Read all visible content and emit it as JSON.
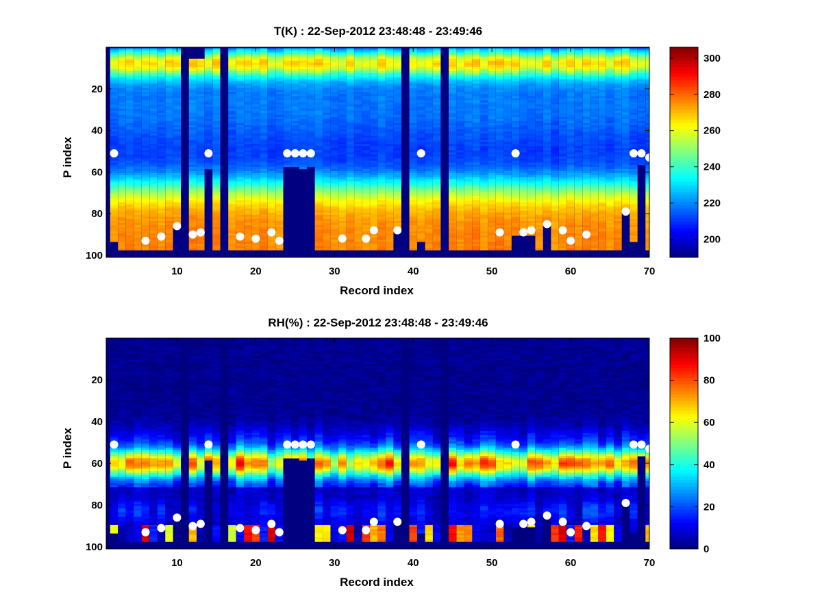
{
  "chart_data": [
    {
      "type": "heatmap",
      "title": "T(K) : 22-Sep-2012 23:48:48 - 23:49:46",
      "xlabel": "Record index",
      "ylabel": "P index",
      "xlim": [
        1,
        70
      ],
      "ylim": [
        0,
        101
      ],
      "y_reversed": true,
      "xticks": [
        10,
        20,
        30,
        40,
        50,
        60,
        70
      ],
      "yticks": [
        20,
        40,
        60,
        80,
        100
      ],
      "colormap": "jet",
      "clim": [
        190,
        306
      ],
      "colorbar_ticks": [
        200,
        220,
        240,
        260,
        280,
        300
      ],
      "variable": "temperature",
      "markers": [
        [
          2,
          51
        ],
        [
          6,
          93
        ],
        [
          8,
          91
        ],
        [
          10,
          86
        ],
        [
          12,
          90
        ],
        [
          13,
          89
        ],
        [
          14,
          51
        ],
        [
          18,
          91
        ],
        [
          20,
          92
        ],
        [
          22,
          89
        ],
        [
          23,
          93
        ],
        [
          24,
          51
        ],
        [
          25,
          51
        ],
        [
          26,
          51
        ],
        [
          27,
          51
        ],
        [
          31,
          92
        ],
        [
          34,
          92
        ],
        [
          35,
          88
        ],
        [
          38,
          88
        ],
        [
          41,
          51
        ],
        [
          51,
          89
        ],
        [
          53,
          51
        ],
        [
          54,
          89
        ],
        [
          55,
          88
        ],
        [
          57,
          85
        ],
        [
          59,
          88
        ],
        [
          60,
          93
        ],
        [
          62,
          90
        ],
        [
          67,
          79
        ],
        [
          68,
          51
        ],
        [
          69,
          51
        ],
        [
          70,
          53
        ]
      ]
    },
    {
      "type": "heatmap",
      "title": "RH(%) : 22-Sep-2012 23:48:48 - 23:49:46",
      "xlabel": "Record index",
      "ylabel": "P index",
      "xlim": [
        1,
        70
      ],
      "ylim": [
        0,
        101
      ],
      "y_reversed": true,
      "xticks": [
        10,
        20,
        30,
        40,
        50,
        60,
        70
      ],
      "yticks": [
        20,
        40,
        60,
        80,
        100
      ],
      "colormap": "jet",
      "clim": [
        0,
        100
      ],
      "colorbar_ticks": [
        0,
        20,
        40,
        60,
        80,
        100
      ],
      "variable": "humidity",
      "markers": [
        [
          2,
          51
        ],
        [
          6,
          93
        ],
        [
          8,
          91
        ],
        [
          10,
          86
        ],
        [
          12,
          90
        ],
        [
          13,
          89
        ],
        [
          14,
          51
        ],
        [
          18,
          91
        ],
        [
          20,
          92
        ],
        [
          22,
          89
        ],
        [
          23,
          93
        ],
        [
          24,
          51
        ],
        [
          25,
          51
        ],
        [
          26,
          51
        ],
        [
          27,
          51
        ],
        [
          31,
          92
        ],
        [
          34,
          92
        ],
        [
          35,
          88
        ],
        [
          38,
          88
        ],
        [
          41,
          51
        ],
        [
          51,
          89
        ],
        [
          53,
          51
        ],
        [
          54,
          89
        ],
        [
          55,
          88
        ],
        [
          57,
          85
        ],
        [
          59,
          88
        ],
        [
          60,
          93
        ],
        [
          62,
          90
        ],
        [
          67,
          79
        ],
        [
          68,
          51
        ],
        [
          69,
          51
        ],
        [
          70,
          53
        ]
      ]
    }
  ],
  "profiles": {
    "columns_full_missing": [
      1,
      11,
      16,
      39,
      44
    ],
    "column_missing_from": [
      [
        2,
        94
      ],
      [
        10,
        86
      ],
      [
        14,
        59
      ],
      [
        24,
        58
      ],
      [
        25,
        58
      ],
      [
        26,
        59
      ],
      [
        27,
        58
      ],
      [
        38,
        88
      ],
      [
        41,
        94
      ],
      [
        53,
        91
      ],
      [
        54,
        91
      ],
      [
        55,
        91
      ],
      [
        57,
        85
      ],
      [
        67,
        79
      ],
      [
        68,
        94
      ],
      [
        69,
        57
      ]
    ],
    "columns_nodata_top": [
      [
        12,
        6
      ],
      [
        13,
        6
      ]
    ],
    "surface_bottom": 97
  }
}
